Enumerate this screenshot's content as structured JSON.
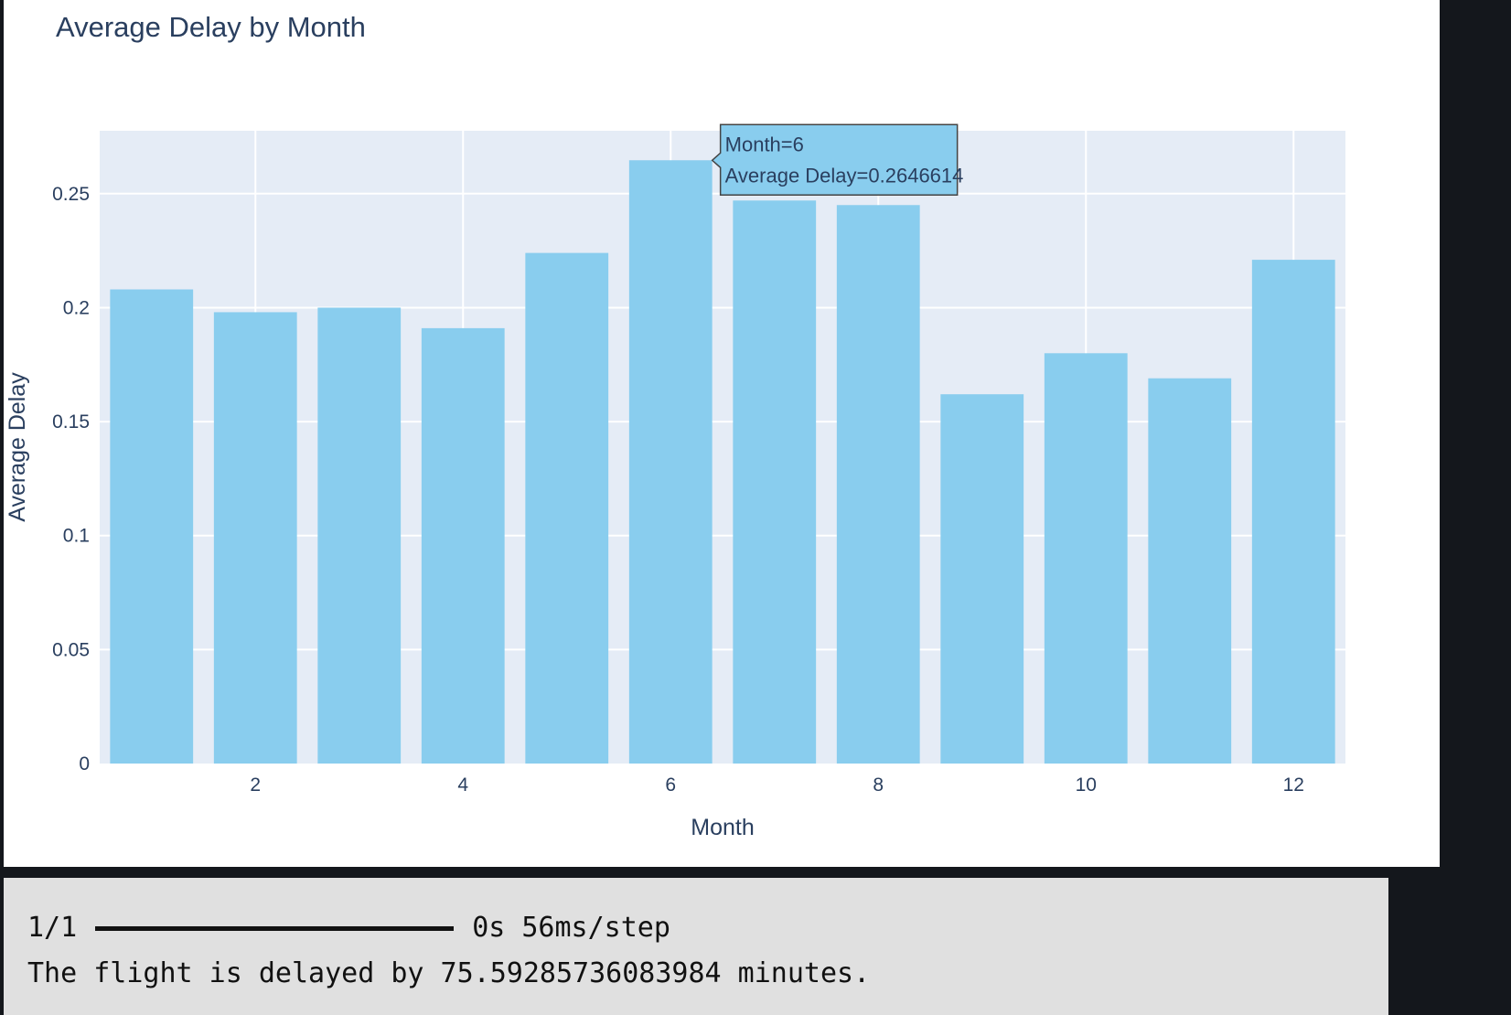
{
  "chart_data": {
    "type": "bar",
    "title": "Average Delay by Month",
    "xlabel": "Month",
    "ylabel": "Average Delay",
    "x": [
      1,
      2,
      3,
      4,
      5,
      6,
      7,
      8,
      9,
      10,
      11,
      12
    ],
    "values": [
      0.208,
      0.198,
      0.2,
      0.191,
      0.224,
      0.2646614,
      0.247,
      0.245,
      0.162,
      0.18,
      0.169,
      0.221
    ],
    "xlim": [
      0.5,
      12.5
    ],
    "ylim": [
      0,
      0.2776
    ],
    "x_ticks": [
      2,
      4,
      6,
      8,
      10,
      12
    ],
    "y_ticks": [
      0,
      0.05,
      0.1,
      0.15,
      0.2,
      0.25
    ],
    "y_tick_labels": [
      "0",
      "0.05",
      "0.1",
      "0.15",
      "0.2",
      "0.25"
    ],
    "grid": true,
    "bar_color": "#89cdee",
    "plot_bgcolor": "#e5ecf6",
    "hover": {
      "x": 6,
      "y": 0.2646614,
      "line1": "Month=6",
      "line2": "Average Delay=0.2646614"
    }
  },
  "output": {
    "progress_step": "1/1",
    "progress_fraction": 1.0,
    "progress_timing": "0s 56ms/step",
    "result": "The flight is delayed by 75.59285736083984 minutes."
  },
  "colors": {
    "text": "#2a3f5f",
    "output_bg": "#e0e0e0",
    "page_bg": "#14171c"
  }
}
